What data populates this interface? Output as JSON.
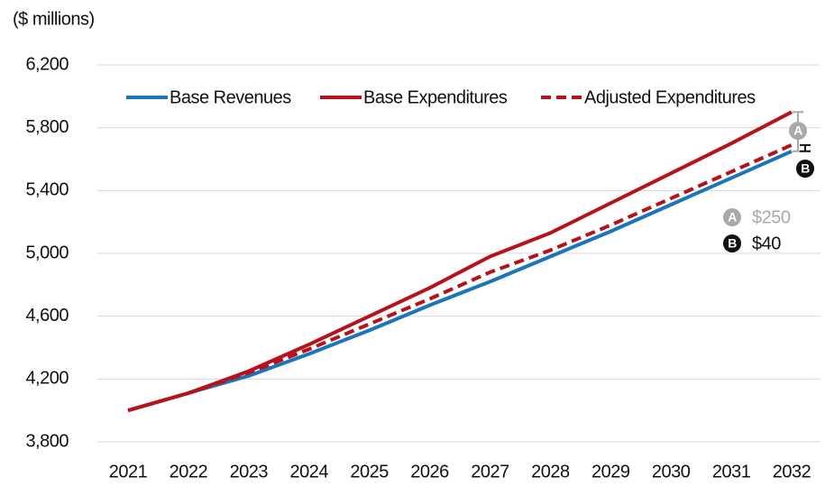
{
  "chart_data": {
    "type": "line",
    "y_axis_label": "($ millions)",
    "categories": [
      "2021",
      "2022",
      "2023",
      "2024",
      "2025",
      "2026",
      "2027",
      "2028",
      "2029",
      "2030",
      "2031",
      "2032"
    ],
    "series": [
      {
        "name": "Base Revenues",
        "color": "#1a75bc",
        "dashed": false,
        "values": [
          4000,
          4110,
          4220,
          4360,
          4510,
          4670,
          4820,
          4980,
          5140,
          5310,
          5480,
          5650
        ]
      },
      {
        "name": "Base Expenditures",
        "color": "#b5121b",
        "dashed": false,
        "values": [
          4000,
          4110,
          4250,
          4420,
          4600,
          4780,
          4980,
          5130,
          5320,
          5510,
          5700,
          5900
        ]
      },
      {
        "name": "Adjusted Expenditures",
        "color": "#b5121b",
        "dashed": true,
        "values": [
          4000,
          4110,
          4240,
          4390,
          4550,
          4710,
          4880,
          5020,
          5180,
          5350,
          5520,
          5690
        ]
      }
    ],
    "annotations": [
      {
        "marker": "A",
        "label": "$250",
        "value": 250,
        "color": "#a7a9ac"
      },
      {
        "marker": "B",
        "label": "$40",
        "value": 40,
        "color": "#111111"
      }
    ],
    "ylim": [
      3800,
      6200
    ],
    "yticks": [
      {
        "value": 3800,
        "label": "3,800"
      },
      {
        "value": 4200,
        "label": "4,200"
      },
      {
        "value": 4600,
        "label": "4,600"
      },
      {
        "value": 5000,
        "label": "5,000"
      },
      {
        "value": 5400,
        "label": "5,400"
      },
      {
        "value": 5800,
        "label": "5,800"
      },
      {
        "value": 6200,
        "label": "6,200"
      }
    ],
    "grid": true
  }
}
